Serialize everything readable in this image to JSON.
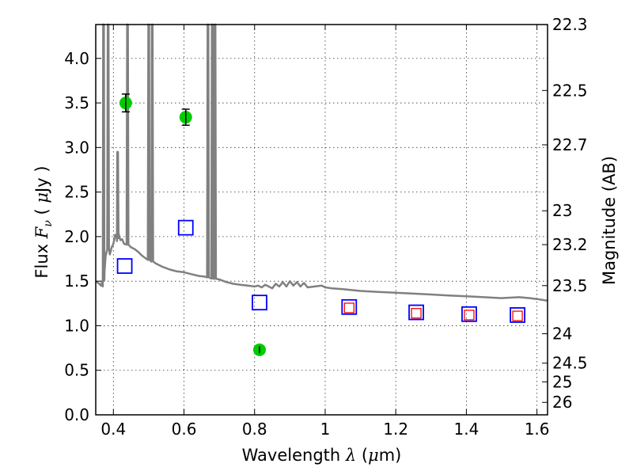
{
  "chart_data": {
    "type": "scatter",
    "xlabel": {
      "prefix": "Wavelength  ",
      "symbol": "λ",
      "unit_open": " (",
      "mu": "μ",
      "unit": "m)"
    },
    "ylabel": {
      "prefix": "Flux  ",
      "symbol": "F",
      "sub": "ν",
      "unit_open": "  ( ",
      "mu": "μ",
      "unit": "Jy )"
    },
    "y2label": "Magnitude (AB)",
    "xlim": [
      0.35,
      1.63
    ],
    "ylim": [
      0.0,
      4.38
    ],
    "grid": true,
    "x_ticks": [
      0.4,
      0.6,
      0.8,
      1.0,
      1.2,
      1.4,
      1.6
    ],
    "x_tick_labels": [
      "0.4",
      "0.6",
      "0.8",
      "1",
      "1.2",
      "1.4",
      "1.6"
    ],
    "y_ticks": [
      0.0,
      0.5,
      1.0,
      1.5,
      2.0,
      2.5,
      3.0,
      3.5,
      4.0
    ],
    "y_tick_labels": [
      "0.0",
      "0.5",
      "1.0",
      "1.5",
      "2.0",
      "2.5",
      "3.0",
      "3.5",
      "4.0"
    ],
    "y2_ticks": [
      {
        "flux": 4.38,
        "label": "22.3"
      },
      {
        "flux": 3.64,
        "label": "22.5"
      },
      {
        "flux": 3.03,
        "label": "22.7"
      },
      {
        "flux": 2.29,
        "label": "23"
      },
      {
        "flux": 1.91,
        "label": "23.2"
      },
      {
        "flux": 1.45,
        "label": "23.5"
      },
      {
        "flux": 0.91,
        "label": "24"
      },
      {
        "flux": 0.58,
        "label": "24.5"
      },
      {
        "flux": 0.37,
        "label": "25"
      },
      {
        "flux": 0.14,
        "label": "26"
      }
    ],
    "model_spectrum": {
      "color": "#808080",
      "baseline": [
        [
          0.35,
          1.5
        ],
        [
          0.36,
          1.47
        ],
        [
          0.365,
          1.45
        ],
        [
          0.37,
          1.44
        ],
        [
          0.375,
          1.62
        ],
        [
          0.378,
          1.78
        ],
        [
          0.382,
          1.85
        ],
        [
          0.385,
          1.86
        ],
        [
          0.39,
          1.8
        ],
        [
          0.395,
          1.88
        ],
        [
          0.4,
          1.92
        ],
        [
          0.405,
          2.02
        ],
        [
          0.41,
          1.95
        ],
        [
          0.415,
          2.03
        ],
        [
          0.42,
          1.96
        ],
        [
          0.425,
          1.97
        ],
        [
          0.43,
          1.92
        ],
        [
          0.44,
          1.91
        ],
        [
          0.45,
          1.88
        ],
        [
          0.46,
          1.86
        ],
        [
          0.47,
          1.83
        ],
        [
          0.48,
          1.79
        ],
        [
          0.49,
          1.76
        ],
        [
          0.5,
          1.74
        ],
        [
          0.52,
          1.7
        ],
        [
          0.54,
          1.66
        ],
        [
          0.56,
          1.63
        ],
        [
          0.58,
          1.61
        ],
        [
          0.6,
          1.6
        ],
        [
          0.62,
          1.58
        ],
        [
          0.64,
          1.56
        ],
        [
          0.66,
          1.55
        ],
        [
          0.68,
          1.53
        ],
        [
          0.7,
          1.52
        ],
        [
          0.72,
          1.49
        ],
        [
          0.74,
          1.47
        ],
        [
          0.76,
          1.46
        ],
        [
          0.78,
          1.45
        ],
        [
          0.8,
          1.44
        ],
        [
          0.81,
          1.45
        ],
        [
          0.82,
          1.43
        ],
        [
          0.83,
          1.46
        ],
        [
          0.84,
          1.44
        ],
        [
          0.85,
          1.42
        ],
        [
          0.86,
          1.47
        ],
        [
          0.87,
          1.44
        ],
        [
          0.88,
          1.49
        ],
        [
          0.89,
          1.44
        ],
        [
          0.9,
          1.5
        ],
        [
          0.91,
          1.45
        ],
        [
          0.92,
          1.49
        ],
        [
          0.93,
          1.44
        ],
        [
          0.94,
          1.48
        ],
        [
          0.95,
          1.43
        ],
        [
          0.97,
          1.44
        ],
        [
          0.99,
          1.45
        ],
        [
          1.0,
          1.43
        ],
        [
          1.02,
          1.42
        ],
        [
          1.05,
          1.41
        ],
        [
          1.1,
          1.39
        ],
        [
          1.15,
          1.38
        ],
        [
          1.2,
          1.37
        ],
        [
          1.25,
          1.36
        ],
        [
          1.3,
          1.35
        ],
        [
          1.35,
          1.34
        ],
        [
          1.4,
          1.33
        ],
        [
          1.45,
          1.32
        ],
        [
          1.5,
          1.31
        ],
        [
          1.55,
          1.32
        ],
        [
          1.58,
          1.31
        ],
        [
          1.6,
          1.3
        ],
        [
          1.63,
          1.28
        ]
      ],
      "emission_lines": [
        {
          "x": 0.372,
          "peak": 4.38
        },
        {
          "x": 0.385,
          "peak": 4.38
        },
        {
          "x": 0.412,
          "peak": 2.95
        },
        {
          "x": 0.44,
          "peak": 4.38
        },
        {
          "x": 0.5,
          "peak": 4.38
        },
        {
          "x": 0.51,
          "peak": 4.38
        },
        {
          "x": 0.668,
          "peak": 4.38
        },
        {
          "x": 0.68,
          "peak": 4.38
        },
        {
          "x": 0.688,
          "peak": 4.38
        }
      ]
    },
    "series": [
      {
        "marker": "circle",
        "color": "#00cc00",
        "points": [
          {
            "x": 0.435,
            "y": 3.5,
            "yerr": 0.1
          },
          {
            "x": 0.605,
            "y": 3.34,
            "yerr": 0.09
          },
          {
            "x": 0.814,
            "y": 0.73,
            "yerr": 0.04
          }
        ]
      },
      {
        "marker": "open-square",
        "color": "#0000ff",
        "points": [
          {
            "x": 0.432,
            "y": 1.67
          },
          {
            "x": 0.605,
            "y": 2.1
          },
          {
            "x": 0.814,
            "y": 1.26
          },
          {
            "x": 1.068,
            "y": 1.21
          },
          {
            "x": 1.258,
            "y": 1.15
          },
          {
            "x": 1.408,
            "y": 1.13
          },
          {
            "x": 1.545,
            "y": 1.12
          }
        ]
      },
      {
        "marker": "open-square",
        "color": "#ff0000",
        "points": [
          {
            "x": 1.068,
            "y": 1.2
          },
          {
            "x": 1.258,
            "y": 1.14
          },
          {
            "x": 1.408,
            "y": 1.12
          },
          {
            "x": 1.545,
            "y": 1.11
          }
        ]
      }
    ]
  }
}
